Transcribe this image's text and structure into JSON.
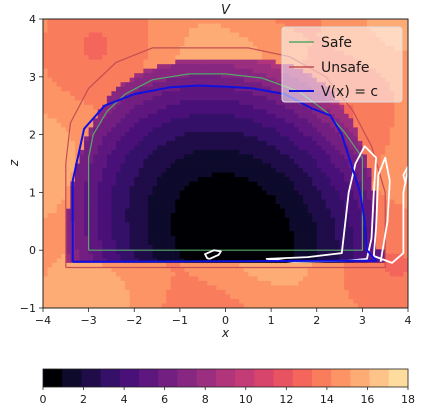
{
  "chart_data": {
    "type": "heatmap",
    "title": "V",
    "xlabel": "x",
    "ylabel": "z",
    "xlim": [
      -4,
      4
    ],
    "ylim": [
      -1,
      4
    ],
    "x_ticks": [
      "−4",
      "−3",
      "−2",
      "−1",
      "0",
      "1",
      "2",
      "3",
      "4"
    ],
    "y_ticks": [
      "−1",
      "0",
      "1",
      "2",
      "3",
      "4"
    ],
    "grid": false,
    "colormap": "magma",
    "colorbar": {
      "orientation": "horizontal",
      "range": [
        0,
        18
      ],
      "levels": [
        0,
        1,
        2,
        3,
        4,
        5,
        6,
        7,
        8,
        9,
        10,
        11,
        12,
        13,
        14,
        15,
        16,
        17,
        18
      ],
      "tick_labels": [
        "0",
        "2",
        "4",
        "6",
        "8",
        "10",
        "12",
        "14",
        "16",
        "18"
      ],
      "colors": [
        "#000004",
        "#0d0a2c",
        "#1f0c48",
        "#341068",
        "#4a1079",
        "#5e177f",
        "#721f81",
        "#872781",
        "#9b2e7e",
        "#b1357a",
        "#c43c75",
        "#d8456c",
        "#e85362",
        "#f4665c",
        "#f97c5d",
        "#fc9465",
        "#feac76",
        "#fec389",
        "#fddc9e"
      ]
    },
    "legend": {
      "position": "top-right",
      "entries": [
        {
          "label": "Safe",
          "color": "#55a868"
        },
        {
          "label": "Unsafe",
          "color": "#c44e52"
        },
        {
          "label": "V(x) = c",
          "color": "#1010e0"
        }
      ]
    },
    "safe_set": {
      "color": "#55a868",
      "points": [
        [
          -3,
          0
        ],
        [
          -3,
          1.6
        ],
        [
          -2.9,
          2
        ],
        [
          -2.6,
          2.4
        ],
        [
          -2.2,
          2.7
        ],
        [
          -1.6,
          2.95
        ],
        [
          -0.8,
          3.05
        ],
        [
          0,
          3.05
        ],
        [
          0.8,
          2.98
        ],
        [
          1.6,
          2.75
        ],
        [
          2.2,
          2.4
        ],
        [
          2.6,
          2.05
        ],
        [
          3,
          1.6
        ],
        [
          3,
          0
        ],
        [
          -3,
          0
        ]
      ]
    },
    "unsafe_set": {
      "color": "#c44e52",
      "points": [
        [
          -3.5,
          -0.3
        ],
        [
          -3.5,
          1.5
        ],
        [
          -3.4,
          2.2
        ],
        [
          -3,
          2.8
        ],
        [
          -2.4,
          3.25
        ],
        [
          -1.6,
          3.5
        ],
        [
          -0.6,
          3.5
        ],
        [
          0.5,
          3.5
        ],
        [
          1.4,
          3.35
        ],
        [
          2.2,
          3.0
        ],
        [
          2.8,
          2.4
        ],
        [
          3.2,
          1.8
        ],
        [
          3.5,
          1.0
        ],
        [
          3.5,
          -0.3
        ],
        [
          -3.5,
          -0.3
        ]
      ]
    },
    "level_set": {
      "label": "V(x) = c",
      "color": "#1010e0",
      "points": [
        [
          -3.35,
          -0.2
        ],
        [
          -3.35,
          1.2
        ],
        [
          -3.1,
          2.1
        ],
        [
          -2.65,
          2.5
        ],
        [
          -2.0,
          2.7
        ],
        [
          -1.2,
          2.82
        ],
        [
          -0.6,
          2.85
        ],
        [
          0,
          2.83
        ],
        [
          0.6,
          2.8
        ],
        [
          1.3,
          2.7
        ],
        [
          1.9,
          2.45
        ],
        [
          2.3,
          2.33
        ],
        [
          2.55,
          2.0
        ],
        [
          2.75,
          1.5
        ],
        [
          2.95,
          1.0
        ],
        [
          3.05,
          0.5
        ],
        [
          3.1,
          0
        ],
        [
          3.3,
          -0.18
        ],
        [
          -3.35,
          -0.2
        ]
      ]
    },
    "white_contours": [
      {
        "points": [
          [
            2.7,
            -0.18
          ],
          [
            3.1,
            -0.15
          ],
          [
            3.2,
            0.2
          ],
          [
            3.25,
            1.0
          ],
          [
            3.3,
            1.6
          ],
          [
            3.05,
            1.8
          ],
          [
            2.85,
            1.5
          ],
          [
            2.7,
            1.0
          ],
          [
            2.6,
            0.3
          ],
          [
            2.55,
            -0.05
          ],
          [
            1.8,
            -0.12
          ],
          [
            0.9,
            -0.15
          ],
          [
            1.5,
            -0.2
          ],
          [
            2.7,
            -0.18
          ]
        ]
      },
      {
        "points": [
          [
            3.4,
            -0.2
          ],
          [
            3.55,
            0.5
          ],
          [
            3.6,
            1.2
          ],
          [
            3.5,
            1.6
          ],
          [
            3.35,
            1.3
          ],
          [
            3.3,
            0.4
          ],
          [
            3.25,
            -0.1
          ],
          [
            3.65,
            -0.22
          ],
          [
            3.9,
            -0.05
          ],
          [
            3.9,
            1.0
          ],
          [
            4.0,
            1.4
          ]
        ]
      },
      {
        "points": [
          [
            -0.35,
            -0.15
          ],
          [
            -0.15,
            -0.08
          ],
          [
            -0.1,
            -0.02
          ],
          [
            -0.25,
            0.0
          ],
          [
            -0.45,
            -0.07
          ],
          [
            -0.4,
            -0.14
          ],
          [
            -0.35,
            -0.15
          ]
        ]
      },
      {
        "points": [
          [
            3.95,
            1.15
          ],
          [
            3.9,
            1.3
          ],
          [
            4.0,
            1.45
          ]
        ]
      }
    ]
  }
}
